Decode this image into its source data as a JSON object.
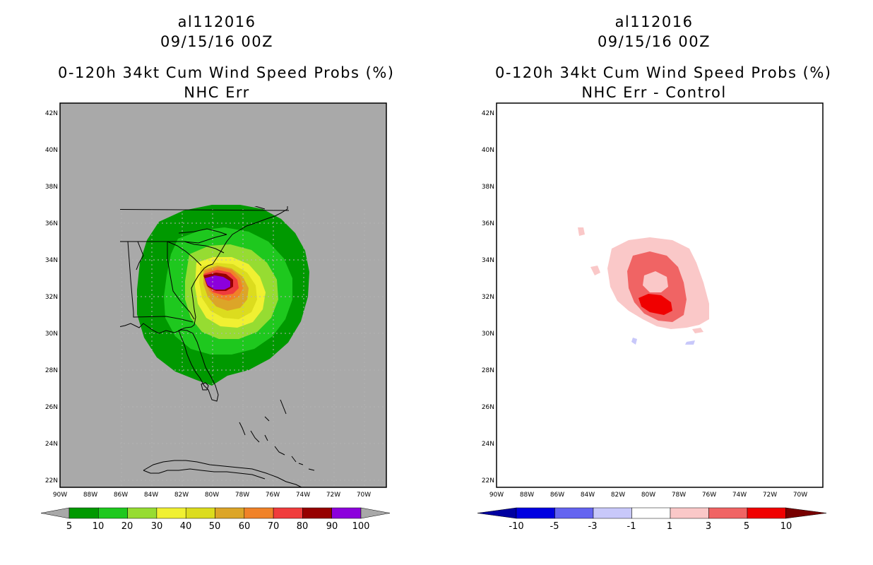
{
  "left_panel": {
    "storm_id": "al112016",
    "datetime": "09/15/16 00Z",
    "product": "0-120h 34kt Cum Wind Speed Probs (%)",
    "subtitle": "NHC Err",
    "colorbar": {
      "labels": [
        "5",
        "10",
        "20",
        "30",
        "40",
        "50",
        "60",
        "70",
        "80",
        "90",
        "100"
      ],
      "colors": [
        "#009900",
        "#1ec81e",
        "#96dc32",
        "#f0f032",
        "#dcdc1e",
        "#dca528",
        "#f08228",
        "#f03c3c",
        "#960000",
        "#8c00dc"
      ],
      "end_color": "#a8a8a8"
    }
  },
  "right_panel": {
    "storm_id": "al112016",
    "datetime": "09/15/16 00Z",
    "product": "0-120h 34kt Cum Wind Speed Probs (%)",
    "subtitle": "NHC Err - Control",
    "colorbar": {
      "labels": [
        "-10",
        "-5",
        "-3",
        "-1",
        "1",
        "3",
        "5",
        "10"
      ],
      "colors": [
        "#0000e0",
        "#6464f0",
        "#c8c8fa",
        "#ffffff",
        "#fac8c8",
        "#f06464",
        "#f00000"
      ],
      "low_color": "#0000a0",
      "high_color": "#780000"
    }
  },
  "lat_labels": [
    "42N",
    "40N",
    "38N",
    "36N",
    "34N",
    "32N",
    "30N",
    "28N",
    "26N",
    "24N",
    "22N"
  ],
  "lon_labels": [
    "90W",
    "88W",
    "86W",
    "84W",
    "82W",
    "80W",
    "78W",
    "76W",
    "74W",
    "72W",
    "70W"
  ],
  "colors": {
    "land_bg": "#a9a9a9",
    "map_line": "#000000",
    "grid": "#b4b4b4"
  }
}
